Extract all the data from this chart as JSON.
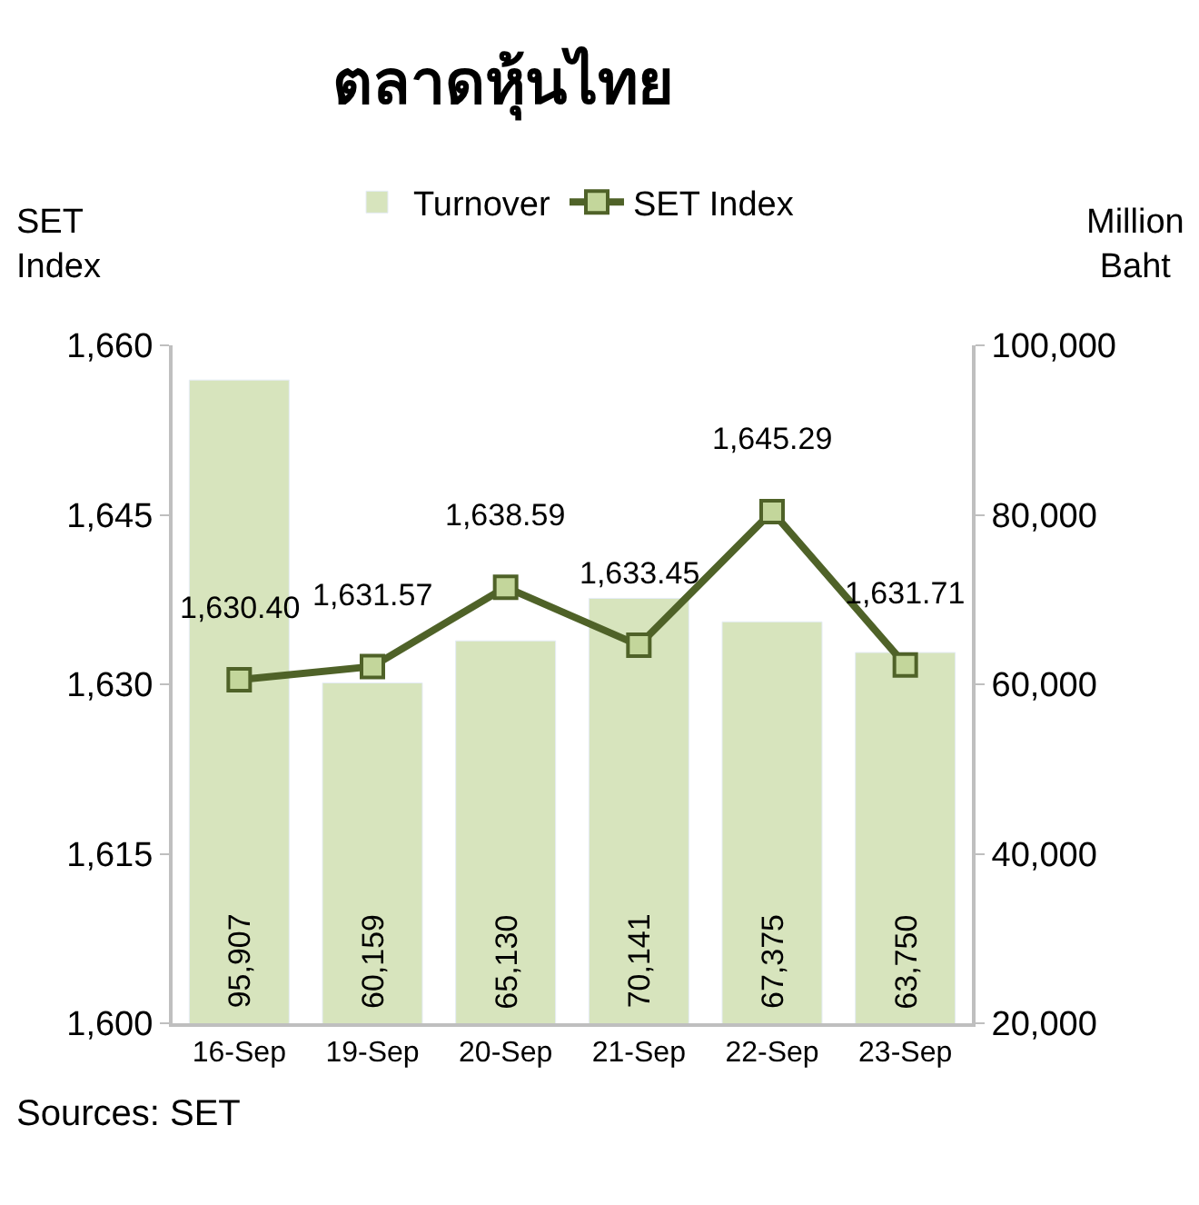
{
  "chart_data": {
    "type": "bar",
    "title": "ตลาดหุ้นไทย",
    "ylabel": "SET\nIndex",
    "y2label": "Million\nBaht",
    "categories": [
      "16-Sep",
      "19-Sep",
      "20-Sep",
      "21-Sep",
      "22-Sep",
      "23-Sep"
    ],
    "series": [
      {
        "name": "Turnover",
        "axis": "y2",
        "color": "#d7e4bd",
        "values": [
          95907,
          60159,
          65130,
          70141,
          67375,
          63750
        ],
        "value_labels": [
          "95,907",
          "60,159",
          "65,130",
          "70,141",
          "67,375",
          "63,750"
        ]
      },
      {
        "name": "SET Index",
        "type": "line",
        "axis": "y",
        "color": "#4f6228",
        "marker": "square",
        "values": [
          1630.4,
          1631.57,
          1638.59,
          1633.45,
          1645.29,
          1631.71
        ],
        "value_labels": [
          "1,630.40",
          "1,631.57",
          "1,638.59",
          "1,633.45",
          "1,645.29",
          "1,631.71"
        ]
      }
    ],
    "ylim": [
      1600,
      1660
    ],
    "yticks": [
      {
        "value": 1600,
        "label": "1,600"
      },
      {
        "value": 1615,
        "label": "1,615"
      },
      {
        "value": 1630,
        "label": "1,630"
      },
      {
        "value": 1645,
        "label": "1,645"
      },
      {
        "value": 1660,
        "label": "1,660"
      }
    ],
    "y2lim": [
      20000,
      100000
    ],
    "y2ticks": [
      {
        "value": 20000,
        "label": "20,000"
      },
      {
        "value": 40000,
        "label": "40,000"
      },
      {
        "value": 60000,
        "label": "60,000"
      },
      {
        "value": 80000,
        "label": "80,000"
      },
      {
        "value": 100000,
        "label": "100,000"
      }
    ],
    "legend": "top",
    "annotations": [
      "Sources: SET"
    ]
  }
}
